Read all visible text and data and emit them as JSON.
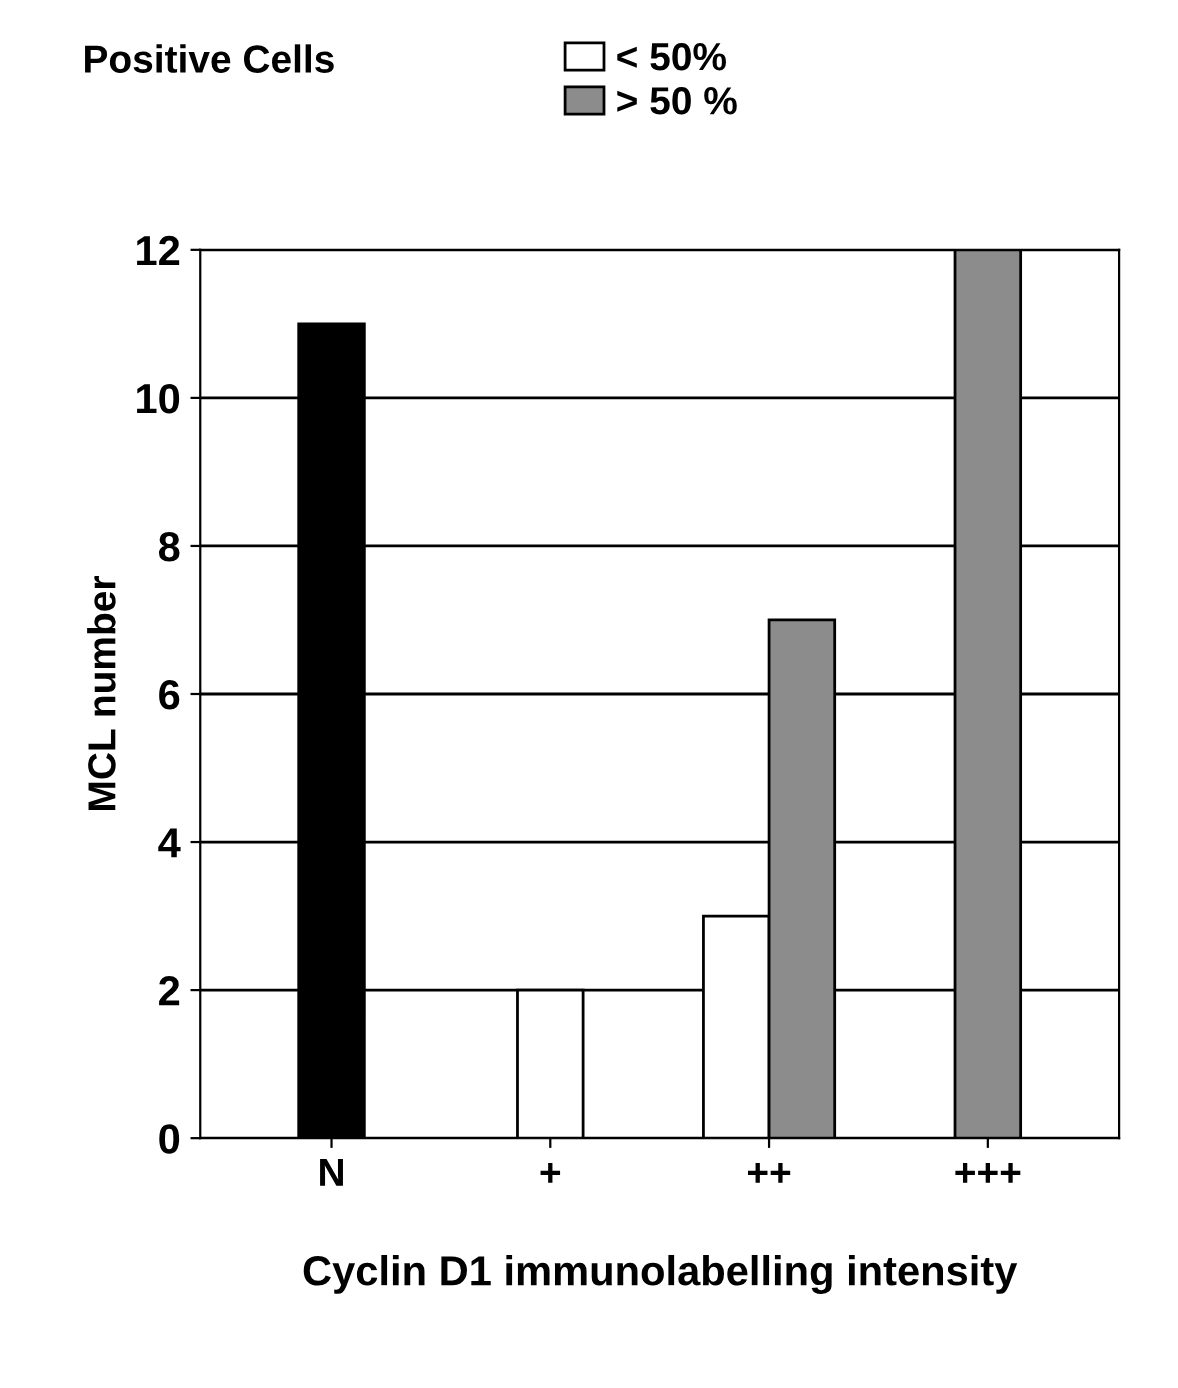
{
  "chart_data": {
    "type": "bar",
    "legend_title": "Positive Cells",
    "xlabel": "Cyclin D1 immunolabelling intensity",
    "ylabel": "MCL number",
    "categories": [
      "N",
      "+",
      "++",
      "+++"
    ],
    "series": [
      {
        "color": "#000000",
        "values": [
          11,
          null,
          null,
          null
        ]
      },
      {
        "name": "< 50%",
        "color": "#ffffff",
        "values": [
          null,
          2,
          3,
          null
        ]
      },
      {
        "name": "> 50 %",
        "color": "#8c8c8c",
        "values": [
          null,
          null,
          7,
          12
        ]
      }
    ],
    "ylim": [
      0,
      12
    ],
    "yticks": [
      0,
      2,
      4,
      6,
      8,
      10,
      12
    ],
    "grid": "y",
    "legend": "top"
  }
}
